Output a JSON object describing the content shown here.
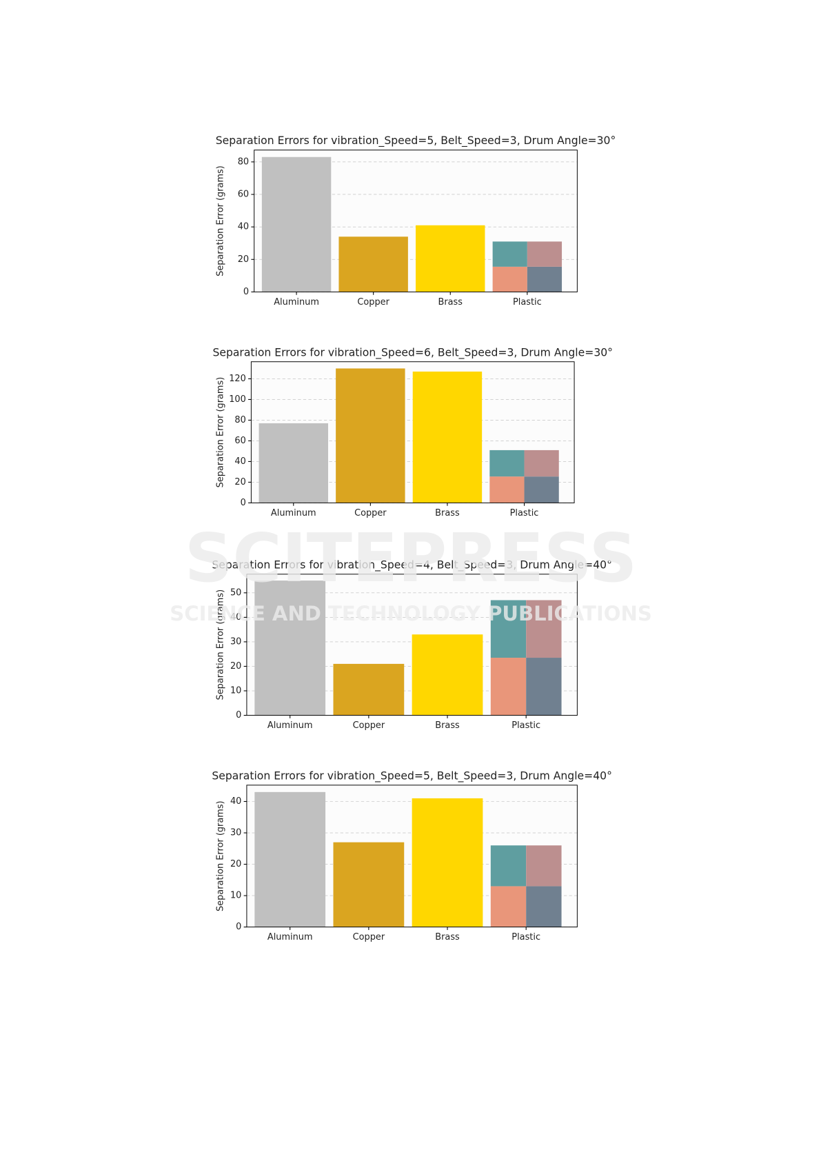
{
  "watermark": {
    "title": "SCITEPRESS",
    "subtitle": "SCIENCE AND TECHNOLOGY PUBLICATIONS"
  },
  "chart_data": [
    {
      "type": "bar",
      "title": "Separation Errors for vibration_Speed=5, Belt_Speed=3, Drum Angle=30°",
      "y_label": "Separation Error (grams)",
      "categories": [
        "Aluminum",
        "Copper",
        "Brass",
        "Plastic"
      ],
      "values": [
        83,
        34,
        41,
        null
      ],
      "colors": [
        "#c0c0c0",
        "#daa520",
        "#ffd700",
        null
      ],
      "split_bar": [
        {
          "colors": [
            "#e9967a",
            "#5f9ea0"
          ],
          "values": [
            15.5,
            15.5
          ]
        },
        {
          "colors": [
            "#708090",
            "#bc8f8f"
          ],
          "values": [
            15.5,
            15.5
          ]
        }
      ],
      "ylim": [
        0,
        87.3
      ],
      "yticks": [
        0,
        20,
        40,
        60,
        80
      ],
      "grid": true
    },
    {
      "type": "bar",
      "title": "Separation Errors for vibration_Speed=6, Belt_Speed=3, Drum Angle=30°",
      "y_label": "Separation Error (grams)",
      "categories": [
        "Aluminum",
        "Copper",
        "Brass",
        "Plastic"
      ],
      "values": [
        77,
        130,
        127,
        null
      ],
      "colors": [
        "#c0c0c0",
        "#daa520",
        "#ffd700",
        null
      ],
      "split_bar": [
        {
          "colors": [
            "#e9967a",
            "#5f9ea0"
          ],
          "values": [
            25.5,
            25.5
          ]
        },
        {
          "colors": [
            "#708090",
            "#bc8f8f"
          ],
          "values": [
            25.5,
            25.5
          ]
        }
      ],
      "ylim": [
        0,
        136.5
      ],
      "yticks": [
        0,
        20,
        40,
        60,
        80,
        100,
        120
      ],
      "grid": true
    },
    {
      "type": "bar",
      "title": "Separation Errors for vibration_Speed=4, Belt_Speed=3, Drum Angle=40°",
      "y_label": "Separation Error (grams)",
      "categories": [
        "Aluminum",
        "Copper",
        "Brass",
        "Plastic"
      ],
      "values": [
        55,
        21,
        33,
        null
      ],
      "colors": [
        "#c0c0c0",
        "#daa520",
        "#ffd700",
        null
      ],
      "split_bar": [
        {
          "colors": [
            "#e9967a",
            "#5f9ea0"
          ],
          "values": [
            23.5,
            23.5
          ]
        },
        {
          "colors": [
            "#708090",
            "#bc8f8f"
          ],
          "values": [
            23.5,
            23.5
          ]
        }
      ],
      "ylim": [
        0,
        57.6
      ],
      "yticks": [
        0,
        10,
        20,
        30,
        40,
        50
      ],
      "grid": true
    },
    {
      "type": "bar",
      "title": "Separation Errors for vibration_Speed=5, Belt_Speed=3, Drum Angle=40°",
      "y_label": "Separation Error (grams)",
      "categories": [
        "Aluminum",
        "Copper",
        "Brass",
        "Plastic"
      ],
      "values": [
        43,
        27,
        41,
        null
      ],
      "colors": [
        "#c0c0c0",
        "#daa520",
        "#ffd700",
        null
      ],
      "split_bar": [
        {
          "colors": [
            "#e9967a",
            "#5f9ea0"
          ],
          "values": [
            13,
            13
          ]
        },
        {
          "colors": [
            "#708090",
            "#bc8f8f"
          ],
          "values": [
            13,
            13
          ]
        }
      ],
      "ylim": [
        0,
        45.2
      ],
      "yticks": [
        0,
        10,
        20,
        30,
        40
      ],
      "grid": true
    }
  ]
}
